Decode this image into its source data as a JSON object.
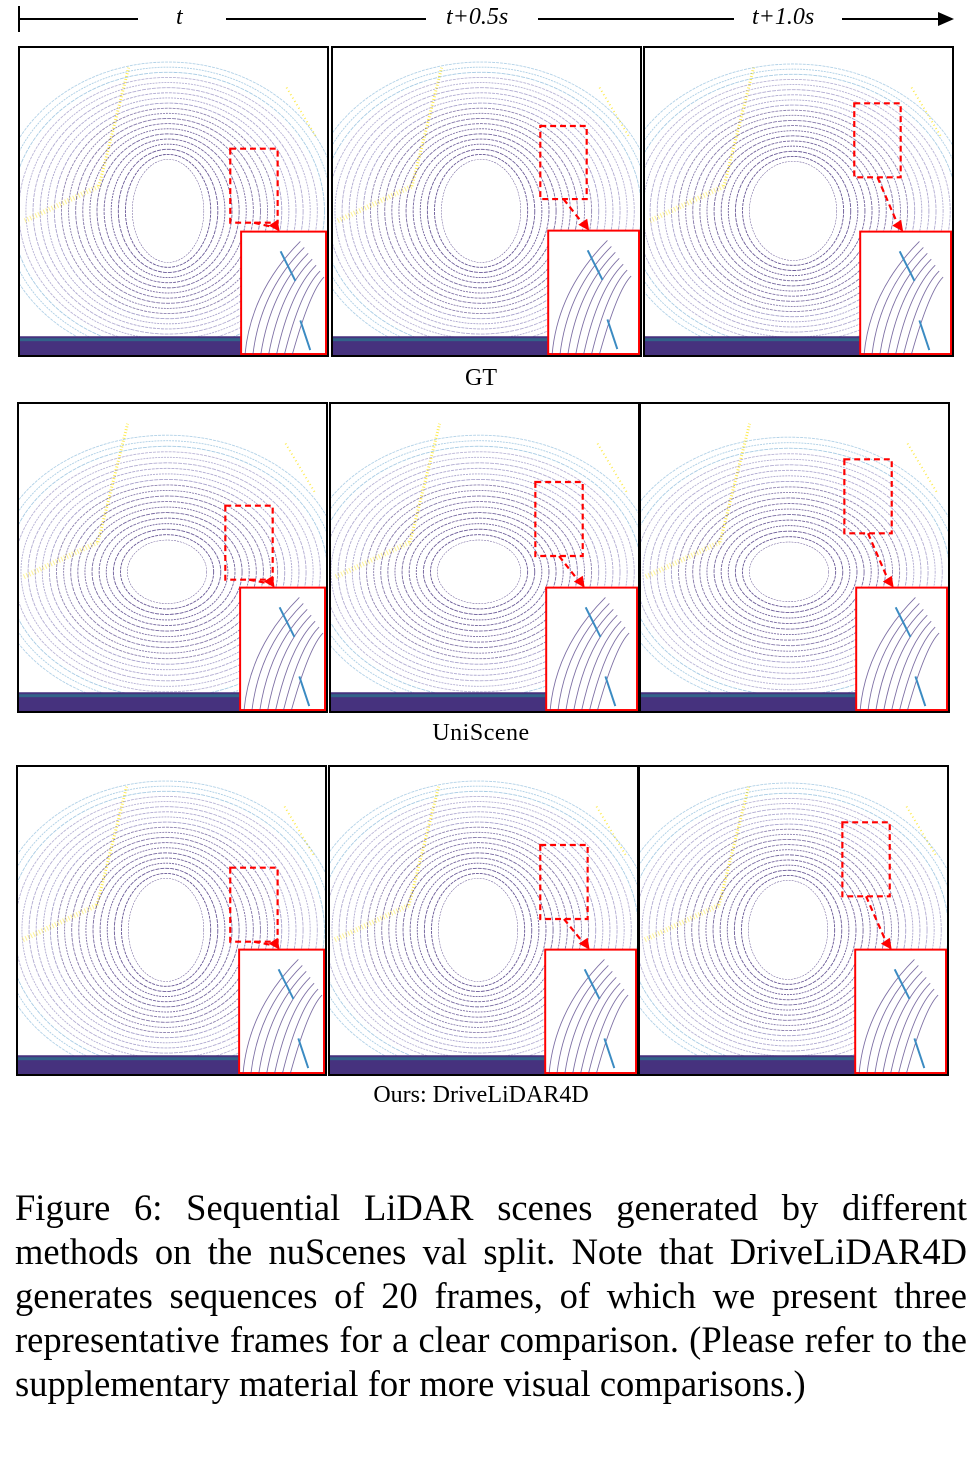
{
  "timeline": {
    "labels": [
      "t",
      "t+0.5s",
      "t+1.0s"
    ]
  },
  "rows": [
    {
      "label": "GT"
    },
    {
      "label": "UniScene"
    },
    {
      "label": "Ours: DriveLiDAR4D"
    }
  ],
  "colors": {
    "highlight": "#ff0000",
    "near_points": "#46327e",
    "mid_points": "#3b8bc2",
    "far_points": "#fde725",
    "frame": "#000000"
  },
  "caption": "Figure 6: Sequential LiDAR scenes generated by different methods on the nuScenes val split. Note that DriveLiDAR4D generates sequences of 20 frames, of which we present three representative frames for a clear comparison. (Please refer to the supplementary material for more visual comparisons.)"
}
